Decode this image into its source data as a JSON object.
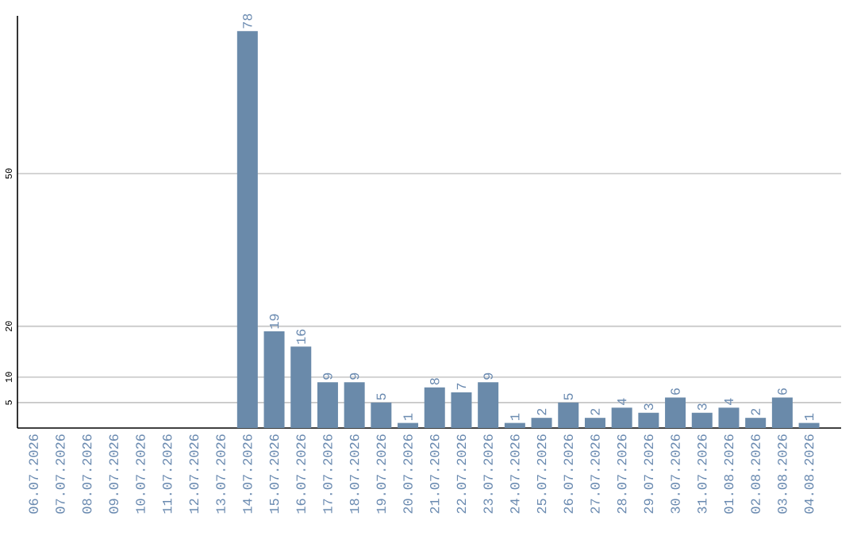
{
  "chart_data": {
    "type": "bar",
    "categories": [
      "06.07.2026",
      "07.07.2026",
      "08.07.2026",
      "09.07.2026",
      "10.07.2026",
      "11.07.2026",
      "12.07.2026",
      "13.07.2026",
      "14.07.2026",
      "15.07.2026",
      "16.07.2026",
      "17.07.2026",
      "18.07.2026",
      "19.07.2026",
      "20.07.2026",
      "21.07.2026",
      "22.07.2026",
      "23.07.2026",
      "24.07.2026",
      "25.07.2026",
      "26.07.2026",
      "27.07.2026",
      "28.07.2026",
      "29.07.2026",
      "30.07.2026",
      "31.07.2026",
      "01.08.2026",
      "02.08.2026",
      "03.08.2026",
      "04.08.2026"
    ],
    "values": [
      null,
      null,
      null,
      null,
      null,
      null,
      null,
      null,
      78,
      19,
      16,
      9,
      9,
      5,
      1,
      8,
      7,
      9,
      1,
      2,
      5,
      2,
      4,
      3,
      6,
      3,
      4,
      2,
      6,
      1
    ],
    "color": "#6a8aaa",
    "ylim": [
      0,
      81
    ],
    "yticks": [
      5,
      10,
      20,
      50
    ],
    "grid": "y",
    "data_labels": true
  }
}
